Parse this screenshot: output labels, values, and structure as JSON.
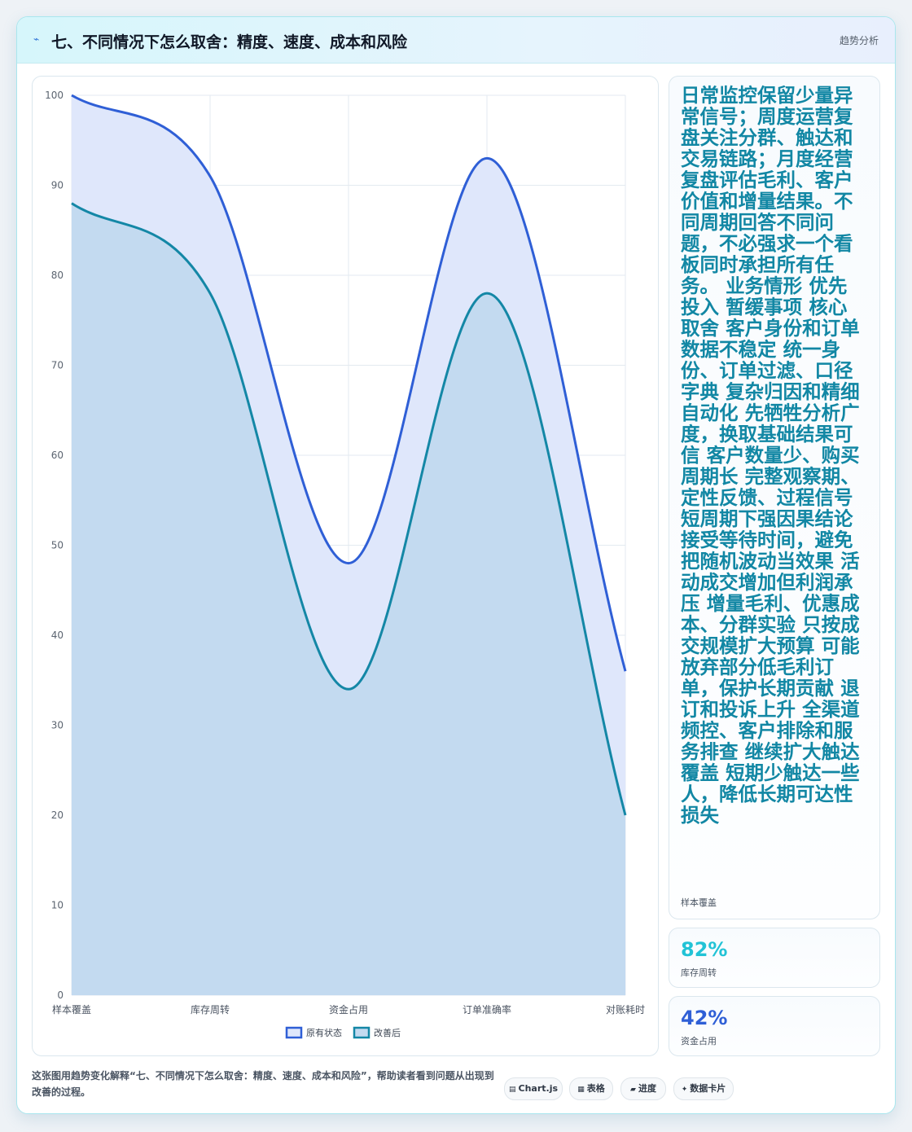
{
  "header": {
    "icon": "trend-icon",
    "title": "七、不同情况下怎么取舍：精度、速度、成本和风险",
    "badge": "趋势分析"
  },
  "chart_data": {
    "type": "area",
    "categories": [
      "样本覆盖",
      "库存周转",
      "资金占用",
      "订单准确率",
      "对账耗时"
    ],
    "series": [
      {
        "name": "原有状态",
        "values": [
          100,
          91,
          48,
          93,
          36
        ],
        "color": "#2f5fd6",
        "fill": "#dfe7fb"
      },
      {
        "name": "改善后",
        "values": [
          88,
          78,
          34,
          78,
          20
        ],
        "color": "#1487a6",
        "fill": "#c3daf0"
      }
    ],
    "ylim": [
      0,
      100
    ],
    "yticks": [
      0,
      10,
      20,
      30,
      40,
      50,
      60,
      70,
      80,
      90,
      100
    ],
    "grid": true,
    "legend": "bottom"
  },
  "side": {
    "big_text": "日常监控保留少量异常信号；周度运营复盘关注分群、触达和交易链路；月度经营复盘评估毛利、客户价值和增量结果。不同周期回答不同问题，不必强求一个看板同时承担所有任务。 业务情形 优先投入 暂缓事项 核心取舍 客户身份和订单数据不稳定 统一身份、订单过滤、口径字典 复杂归因和精细自动化 先牺牲分析广度，换取基础结果可信 客户数量少、购买周期长 完整观察期、定性反馈、过程信号 短周期下强因果结论 接受等待时间，避免把随机波动当效果 活动成交增加但利润承压 增量毛利、优惠成本、分群实验 只按成交规模扩大预算 可能放弃部分低毛利订单，保护长期贡献 退订和投诉上升 全渠道频控、客户排除和服务排查 继续扩大触达覆盖 短期少触达一些人，降低长期可达性损失",
    "big_label": "样本覆盖",
    "stats": [
      {
        "value": "82%",
        "label": "库存周转",
        "color": "#22c3d6"
      },
      {
        "value": "42%",
        "label": "资金占用",
        "color": "#2f5fd6"
      }
    ]
  },
  "footer": {
    "text": "这张图用趋势变化解释“七、不同情况下怎么取舍：精度、速度、成本和风险”，帮助读者看到问题从出现到改善的过程。",
    "chips": [
      {
        "icon": "chart-icon",
        "glyph": "▤",
        "label": "Chart.js"
      },
      {
        "icon": "table-icon",
        "glyph": "▦",
        "label": "表格"
      },
      {
        "icon": "progress-icon",
        "glyph": "▰",
        "label": "进度"
      },
      {
        "icon": "card-icon",
        "glyph": "✦",
        "label": "数据卡片"
      }
    ]
  }
}
